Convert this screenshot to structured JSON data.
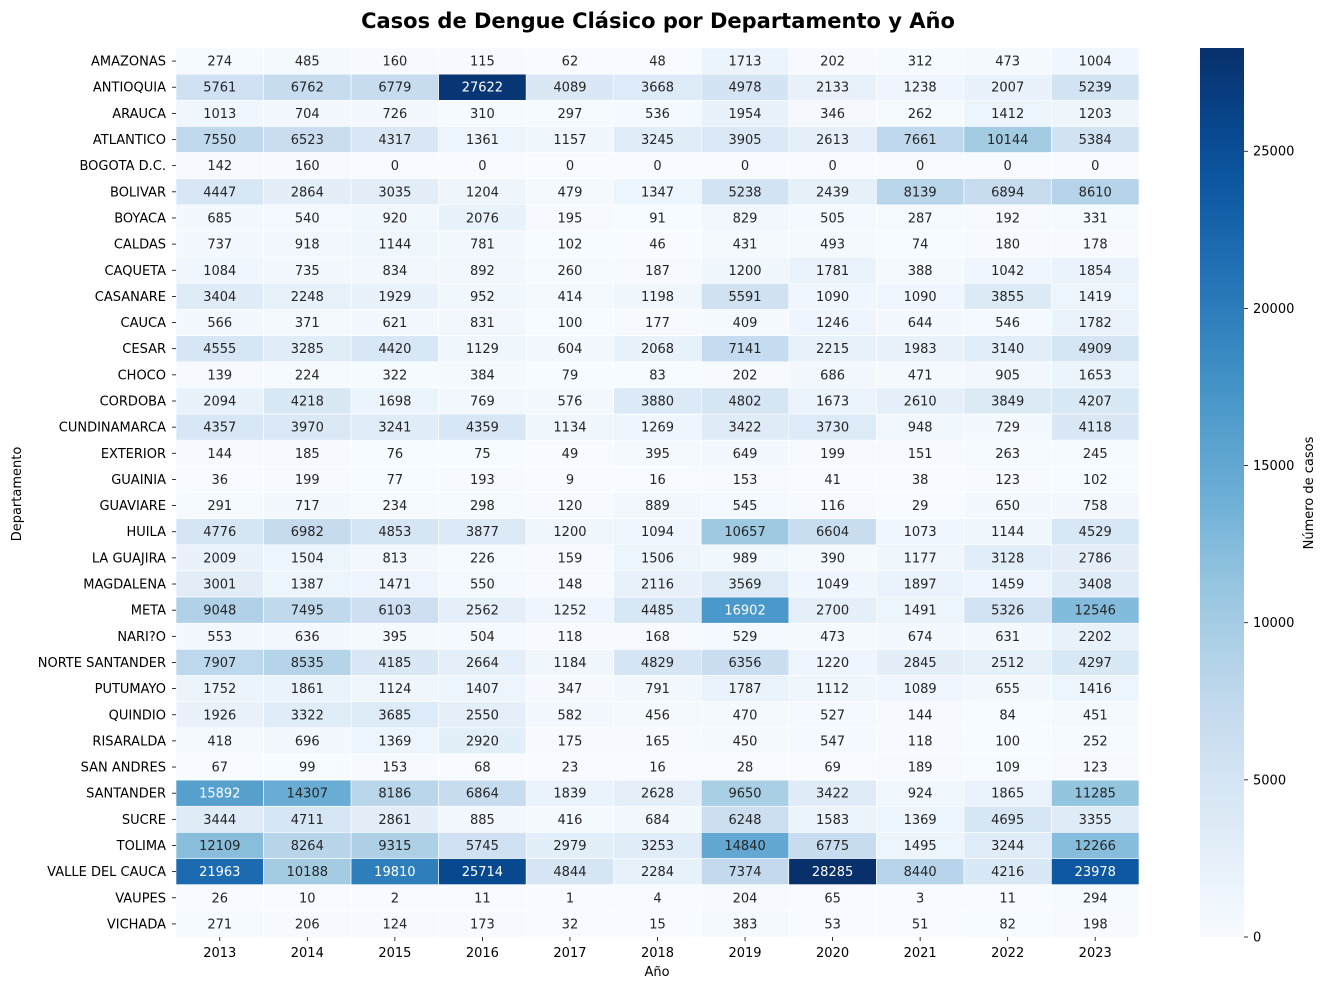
{
  "chart_data": {
    "type": "heatmap",
    "title": "Casos de Dengue Clásico por Departamento y Año",
    "xlabel": "Año",
    "ylabel": "Departamento",
    "colorbar_label": "Número de casos",
    "colormap": "Blues",
    "color_range": [
      0,
      28285
    ],
    "colorbar_ticks": [
      0,
      5000,
      10000,
      15000,
      20000,
      25000
    ],
    "x": [
      "2013",
      "2014",
      "2015",
      "2016",
      "2017",
      "2018",
      "2019",
      "2020",
      "2021",
      "2022",
      "2023"
    ],
    "y": [
      "AMAZONAS",
      "ANTIOQUIA",
      "ARAUCA",
      "ATLANTICO",
      "BOGOTA D.C.",
      "BOLIVAR",
      "BOYACA",
      "CALDAS",
      "CAQUETA",
      "CASANARE",
      "CAUCA",
      "CESAR",
      "CHOCO",
      "CORDOBA",
      "CUNDINAMARCA",
      "EXTERIOR",
      "GUAINIA",
      "GUAVIARE",
      "HUILA",
      "LA GUAJIRA",
      "MAGDALENA",
      "META",
      "NARI?O",
      "NORTE SANTANDER",
      "PUTUMAYO",
      "QUINDIO",
      "RISARALDA",
      "SAN ANDRES",
      "SANTANDER",
      "SUCRE",
      "TOLIMA",
      "VALLE DEL CAUCA",
      "VAUPES",
      "VICHADA"
    ],
    "values": [
      [
        274,
        485,
        160,
        115,
        62,
        48,
        1713,
        202,
        312,
        473,
        1004
      ],
      [
        5761,
        6762,
        6779,
        27622,
        4089,
        3668,
        4978,
        2133,
        1238,
        2007,
        5239
      ],
      [
        1013,
        704,
        726,
        310,
        297,
        536,
        1954,
        346,
        262,
        1412,
        1203
      ],
      [
        7550,
        6523,
        4317,
        1361,
        1157,
        3245,
        3905,
        2613,
        7661,
        10144,
        5384
      ],
      [
        142,
        160,
        0,
        0,
        0,
        0,
        0,
        0,
        0,
        0,
        0
      ],
      [
        4447,
        2864,
        3035,
        1204,
        479,
        1347,
        5238,
        2439,
        8139,
        6894,
        8610
      ],
      [
        685,
        540,
        920,
        2076,
        195,
        91,
        829,
        505,
        287,
        192,
        331
      ],
      [
        737,
        918,
        1144,
        781,
        102,
        46,
        431,
        493,
        74,
        180,
        178
      ],
      [
        1084,
        735,
        834,
        892,
        260,
        187,
        1200,
        1781,
        388,
        1042,
        1854
      ],
      [
        3404,
        2248,
        1929,
        952,
        414,
        1198,
        5591,
        1090,
        1090,
        3855,
        1419
      ],
      [
        566,
        371,
        621,
        831,
        100,
        177,
        409,
        1246,
        644,
        546,
        1782
      ],
      [
        4555,
        3285,
        4420,
        1129,
        604,
        2068,
        7141,
        2215,
        1983,
        3140,
        4909
      ],
      [
        139,
        224,
        322,
        384,
        79,
        83,
        202,
        686,
        471,
        905,
        1653
      ],
      [
        2094,
        4218,
        1698,
        769,
        576,
        3880,
        4802,
        1673,
        2610,
        3849,
        4207
      ],
      [
        4357,
        3970,
        3241,
        4359,
        1134,
        1269,
        3422,
        3730,
        948,
        729,
        4118
      ],
      [
        144,
        185,
        76,
        75,
        49,
        395,
        649,
        199,
        151,
        263,
        245
      ],
      [
        36,
        199,
        77,
        193,
        9,
        16,
        153,
        41,
        38,
        123,
        102
      ],
      [
        291,
        717,
        234,
        298,
        120,
        889,
        545,
        116,
        29,
        650,
        758
      ],
      [
        4776,
        6982,
        4853,
        3877,
        1200,
        1094,
        10657,
        6604,
        1073,
        1144,
        4529
      ],
      [
        2009,
        1504,
        813,
        226,
        159,
        1506,
        989,
        390,
        1177,
        3128,
        2786
      ],
      [
        3001,
        1387,
        1471,
        550,
        148,
        2116,
        3569,
        1049,
        1897,
        1459,
        3408
      ],
      [
        9048,
        7495,
        6103,
        2562,
        1252,
        4485,
        16902,
        2700,
        1491,
        5326,
        12546
      ],
      [
        553,
        636,
        395,
        504,
        118,
        168,
        529,
        473,
        674,
        631,
        2202
      ],
      [
        7907,
        8535,
        4185,
        2664,
        1184,
        4829,
        6356,
        1220,
        2845,
        2512,
        4297
      ],
      [
        1752,
        1861,
        1124,
        1407,
        347,
        791,
        1787,
        1112,
        1089,
        655,
        1416
      ],
      [
        1926,
        3322,
        3685,
        2550,
        582,
        456,
        470,
        527,
        144,
        84,
        451
      ],
      [
        418,
        696,
        1369,
        2920,
        175,
        165,
        450,
        547,
        118,
        100,
        252
      ],
      [
        67,
        99,
        153,
        68,
        23,
        16,
        28,
        69,
        189,
        109,
        123
      ],
      [
        15892,
        14307,
        8186,
        6864,
        1839,
        2628,
        9650,
        3422,
        924,
        1865,
        11285
      ],
      [
        3444,
        4711,
        2861,
        885,
        416,
        684,
        6248,
        1583,
        1369,
        4695,
        3355
      ],
      [
        12109,
        8264,
        9315,
        5745,
        2979,
        3253,
        14840,
        6775,
        1495,
        3244,
        12266
      ],
      [
        21963,
        10188,
        19810,
        25714,
        4844,
        2284,
        7374,
        28285,
        8440,
        4216,
        23978
      ],
      [
        26,
        10,
        2,
        11,
        1,
        4,
        204,
        65,
        3,
        11,
        294
      ],
      [
        271,
        206,
        124,
        173,
        32,
        15,
        383,
        53,
        51,
        82,
        198
      ]
    ]
  }
}
